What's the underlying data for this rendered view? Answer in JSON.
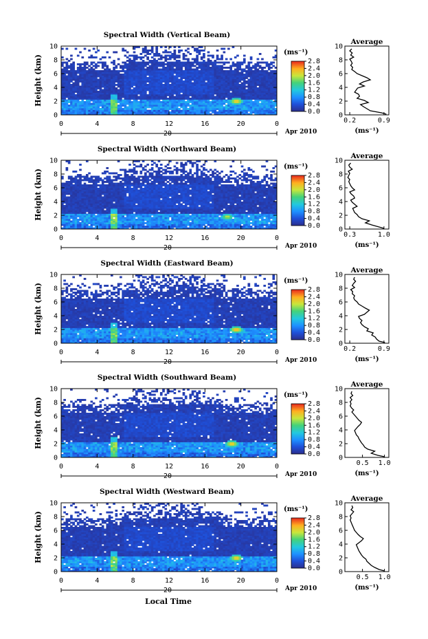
{
  "global": {
    "xlabel": "Local Time",
    "date_label": "Apr 2010",
    "day_label": "20",
    "colorbar_unit": "(ms⁻¹)",
    "average_title": "Average",
    "average_xlabel": "(ms⁻¹)",
    "ylabel": "Height (km)"
  },
  "chart_data": [
    {
      "type": "heatmap",
      "title": "Spectral Width (Vertical Beam)",
      "xlabel": "",
      "ylabel": "Height (km)",
      "x_ticks": [
        "0",
        "4",
        "8",
        "12",
        "16",
        "20",
        "0"
      ],
      "xlim": [
        0,
        24
      ],
      "y_ticks": [
        "0",
        "2",
        "4",
        "6",
        "8",
        "10"
      ],
      "ylim": [
        0,
        10
      ],
      "colorbar": {
        "ticks": [
          "0.0",
          "0.4",
          "0.8",
          "1.2",
          "1.6",
          "2.0",
          "2.4",
          "2.8"
        ],
        "range": [
          0,
          2.8
        ]
      },
      "average": {
        "x_ticks": [
          "0.2",
          "0.9"
        ],
        "xlim": [
          0.1,
          1.0
        ],
        "profile_height": [
          0.1,
          0.3,
          0.6,
          0.9,
          1.2,
          1.5,
          1.8,
          2.1,
          2.4,
          2.7,
          3.0,
          3.3,
          3.6,
          3.9,
          4.2,
          4.5,
          4.8,
          5.1,
          5.4,
          5.7,
          6.0,
          6.3,
          6.6,
          6.9,
          7.2,
          7.5,
          7.8,
          8.1,
          8.4,
          8.7,
          9.0,
          9.3,
          9.6
        ],
        "profile_value": [
          0.95,
          0.85,
          0.62,
          0.55,
          0.48,
          0.42,
          0.58,
          0.5,
          0.35,
          0.4,
          0.38,
          0.3,
          0.33,
          0.36,
          0.5,
          0.4,
          0.48,
          0.62,
          0.55,
          0.45,
          0.35,
          0.3,
          0.24,
          0.26,
          0.22,
          0.25,
          0.23,
          0.2,
          0.28,
          0.22,
          0.25,
          0.2,
          0.24
        ]
      },
      "hotspots": [
        {
          "x": 19.5,
          "y": 2.0,
          "v": 2.6
        }
      ]
    },
    {
      "type": "heatmap",
      "title": "Spectral Width (Northward Beam)",
      "xlabel": "",
      "ylabel": "Height (km)",
      "x_ticks": [
        "0",
        "4",
        "8",
        "12",
        "16",
        "20",
        "0"
      ],
      "xlim": [
        0,
        24
      ],
      "y_ticks": [
        "0",
        "2",
        "4",
        "6",
        "8",
        "10"
      ],
      "ylim": [
        0,
        10
      ],
      "colorbar": {
        "ticks": [
          "0.0",
          "0.4",
          "0.8",
          "1.2",
          "1.6",
          "2.0",
          "2.4",
          "2.8"
        ],
        "range": [
          0,
          2.8
        ]
      },
      "average": {
        "x_ticks": [
          "0.3",
          "1.0"
        ],
        "xlim": [
          0.2,
          1.1
        ],
        "profile_height": [
          0.1,
          0.3,
          0.6,
          0.9,
          1.2,
          1.5,
          1.8,
          2.1,
          2.4,
          2.7,
          3.0,
          3.3,
          3.6,
          3.9,
          4.2,
          4.5,
          4.8,
          5.1,
          5.4,
          5.7,
          6.0,
          6.3,
          6.6,
          6.9,
          7.2,
          7.5,
          7.8,
          8.1,
          8.4,
          8.7,
          9.0,
          9.3,
          9.6
        ],
        "profile_value": [
          1.0,
          0.9,
          0.75,
          0.62,
          0.7,
          0.55,
          0.48,
          0.45,
          0.4,
          0.38,
          0.36,
          0.45,
          0.4,
          0.35,
          0.32,
          0.4,
          0.38,
          0.33,
          0.3,
          0.4,
          0.35,
          0.32,
          0.3,
          0.28,
          0.3,
          0.26,
          0.28,
          0.3,
          0.27,
          0.35,
          0.3,
          0.28,
          0.32
        ]
      },
      "hotspots": [
        {
          "x": 18.5,
          "y": 1.8,
          "v": 2.2
        }
      ]
    },
    {
      "type": "heatmap",
      "title": "Spectral Width (Eastward Beam)",
      "xlabel": "",
      "ylabel": "Height (km)",
      "x_ticks": [
        "0",
        "4",
        "8",
        "12",
        "16",
        "20",
        "0"
      ],
      "xlim": [
        0,
        24
      ],
      "y_ticks": [
        "0",
        "2",
        "4",
        "6",
        "8",
        "10"
      ],
      "ylim": [
        0,
        10
      ],
      "colorbar": {
        "ticks": [
          "0.0",
          "0.4",
          "0.8",
          "1.2",
          "1.6",
          "2.0",
          "2.4",
          "2.8"
        ],
        "range": [
          0,
          2.8
        ]
      },
      "average": {
        "x_ticks": [
          "0.2",
          "0.9"
        ],
        "xlim": [
          0.1,
          1.0
        ],
        "profile_height": [
          0.1,
          0.3,
          0.6,
          0.9,
          1.2,
          1.5,
          1.8,
          2.1,
          2.4,
          2.7,
          3.0,
          3.3,
          3.6,
          3.9,
          4.2,
          4.5,
          4.8,
          5.1,
          5.4,
          5.7,
          6.0,
          6.3,
          6.6,
          6.9,
          7.2,
          7.5,
          7.8,
          8.1,
          8.4,
          8.7,
          9.0,
          9.3,
          9.6
        ],
        "profile_value": [
          0.92,
          0.8,
          0.75,
          0.72,
          0.65,
          0.68,
          0.55,
          0.58,
          0.5,
          0.45,
          0.42,
          0.45,
          0.4,
          0.38,
          0.5,
          0.55,
          0.6,
          0.52,
          0.45,
          0.38,
          0.35,
          0.3,
          0.28,
          0.3,
          0.25,
          0.26,
          0.22,
          0.3,
          0.25,
          0.28,
          0.32,
          0.28,
          0.3
        ]
      },
      "hotspots": [
        {
          "x": 19.5,
          "y": 2.0,
          "v": 2.7
        }
      ]
    },
    {
      "type": "heatmap",
      "title": "Spectral Width (Southward Beam)",
      "xlabel": "",
      "ylabel": "Height (km)",
      "x_ticks": [
        "0",
        "4",
        "8",
        "12",
        "16",
        "20",
        "0"
      ],
      "xlim": [
        0,
        24
      ],
      "y_ticks": [
        "0",
        "2",
        "4",
        "6",
        "8",
        "10"
      ],
      "ylim": [
        0,
        10
      ],
      "colorbar": {
        "ticks": [
          "0.0",
          "0.4",
          "0.8",
          "1.2",
          "1.6",
          "2.0",
          "2.4",
          "2.8"
        ],
        "range": [
          0,
          2.8
        ]
      },
      "average": {
        "x_ticks": [
          "0.5",
          "1.0"
        ],
        "xlim": [
          0.1,
          1.1
        ],
        "profile_height": [
          0.1,
          0.3,
          0.6,
          0.9,
          1.2,
          1.5,
          1.8,
          2.1,
          2.4,
          2.7,
          3.0,
          3.3,
          3.6,
          3.9,
          4.2,
          4.5,
          4.8,
          5.1,
          5.4,
          5.7,
          6.0,
          6.3,
          6.6,
          6.9,
          7.2,
          7.5,
          7.8,
          8.1,
          8.4,
          8.7,
          9.0,
          9.3,
          9.6
        ],
        "profile_value": [
          1.0,
          0.85,
          0.7,
          0.78,
          0.62,
          0.55,
          0.52,
          0.48,
          0.45,
          0.42,
          0.4,
          0.36,
          0.34,
          0.32,
          0.36,
          0.4,
          0.45,
          0.48,
          0.42,
          0.38,
          0.34,
          0.3,
          0.26,
          0.3,
          0.25,
          0.22,
          0.24,
          0.22,
          0.26,
          0.22,
          0.28,
          0.24,
          0.26
        ]
      },
      "hotspots": [
        {
          "x": 19.0,
          "y": 2.0,
          "v": 2.6
        }
      ]
    },
    {
      "type": "heatmap",
      "title": "Spectral Width (Westward Beam)",
      "xlabel": "",
      "ylabel": "Height (km)",
      "x_ticks": [
        "0",
        "4",
        "8",
        "12",
        "16",
        "20",
        "0"
      ],
      "xlim": [
        0,
        24
      ],
      "y_ticks": [
        "0",
        "2",
        "4",
        "6",
        "8",
        "10"
      ],
      "ylim": [
        0,
        10
      ],
      "colorbar": {
        "ticks": [
          "0.0",
          "0.4",
          "0.8",
          "1.2",
          "1.6",
          "2.0",
          "2.4",
          "2.8"
        ],
        "range": [
          0,
          2.8
        ]
      },
      "average": {
        "x_ticks": [
          "0.5",
          "1.0"
        ],
        "xlim": [
          0.1,
          1.1
        ],
        "profile_height": [
          0.1,
          0.3,
          0.6,
          0.9,
          1.2,
          1.5,
          1.8,
          2.1,
          2.4,
          2.7,
          3.0,
          3.3,
          3.6,
          3.9,
          4.2,
          4.5,
          4.8,
          5.1,
          5.4,
          5.7,
          6.0,
          6.3,
          6.6,
          6.9,
          7.2,
          7.5,
          7.8,
          8.1,
          8.4,
          8.7,
          9.0,
          9.3,
          9.6
        ],
        "profile_value": [
          1.0,
          0.88,
          0.78,
          0.7,
          0.65,
          0.6,
          0.58,
          0.52,
          0.48,
          0.45,
          0.42,
          0.4,
          0.38,
          0.36,
          0.42,
          0.48,
          0.52,
          0.45,
          0.4,
          0.36,
          0.32,
          0.3,
          0.28,
          0.26,
          0.24,
          0.22,
          0.24,
          0.22,
          0.26,
          0.3,
          0.24,
          0.28,
          0.26
        ]
      },
      "hotspots": [
        {
          "x": 19.5,
          "y": 2.0,
          "v": 2.6
        }
      ]
    }
  ]
}
